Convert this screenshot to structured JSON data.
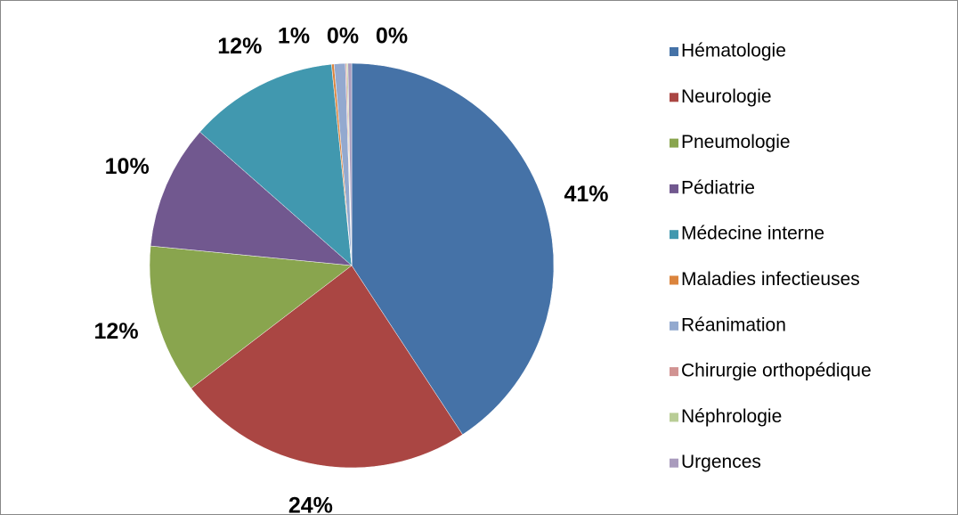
{
  "chart_data": {
    "type": "pie",
    "categories": [
      "Hématologie",
      "Neurologie",
      "Pneumologie",
      "Pédiatrie",
      "Médecine interne",
      "Maladies infectieuses",
      "Réanimation",
      "Chirurgie orthopédique",
      "Néphrologie",
      "Urgences"
    ],
    "values": [
      41,
      24,
      12,
      10,
      12,
      0.2,
      0.9,
      0.1,
      0.1,
      0.3
    ],
    "value_labels": [
      "41%",
      "24%",
      "12%",
      "10%",
      "12%",
      null,
      "1%",
      "0%",
      null,
      "0%"
    ],
    "colors": [
      "#4572a7",
      "#aa4643",
      "#89a54e",
      "#71588f",
      "#4198af",
      "#db843d",
      "#93a9cf",
      "#d19392",
      "#b9cd96",
      "#a99bbd"
    ],
    "legend": "right"
  }
}
